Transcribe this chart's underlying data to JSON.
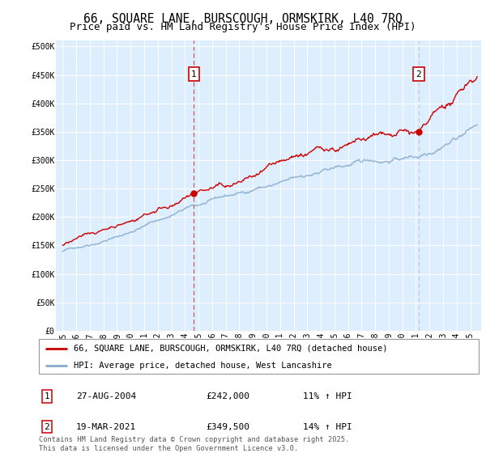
{
  "title": "66, SQUARE LANE, BURSCOUGH, ORMSKIRK, L40 7RQ",
  "subtitle": "Price paid vs. HM Land Registry's House Price Index (HPI)",
  "ylabel_ticks": [
    "£0",
    "£50K",
    "£100K",
    "£150K",
    "£200K",
    "£250K",
    "£300K",
    "£350K",
    "£400K",
    "£450K",
    "£500K"
  ],
  "ytick_values": [
    0,
    50000,
    100000,
    150000,
    200000,
    250000,
    300000,
    350000,
    400000,
    450000,
    500000
  ],
  "ylim": [
    0,
    510000
  ],
  "xlim_start": 1994.5,
  "xlim_end": 2025.8,
  "xtick_years": [
    1995,
    1996,
    1997,
    1998,
    1999,
    2000,
    2001,
    2002,
    2003,
    2004,
    2005,
    2006,
    2007,
    2008,
    2009,
    2010,
    2011,
    2012,
    2013,
    2014,
    2015,
    2016,
    2017,
    2018,
    2019,
    2020,
    2021,
    2022,
    2023,
    2024,
    2025
  ],
  "background_color": "#ddeeff",
  "fig_bg": "#ffffff",
  "grid_color": "#ffffff",
  "red_color": "#cc0000",
  "blue_color": "#88aacc",
  "marker1_x": 2004.65,
  "marker2_x": 2021.2,
  "marker1_dashed_color": "#cc0000",
  "marker2_dashed_color": "#aabbcc",
  "sale1_y": 242000,
  "sale2_y": 349500,
  "legend_line1": "66, SQUARE LANE, BURSCOUGH, ORMSKIRK, L40 7RQ (detached house)",
  "legend_line2": "HPI: Average price, detached house, West Lancashire",
  "ann1_num": "1",
  "ann1_date": "27-AUG-2004",
  "ann1_price": "£242,000",
  "ann1_hpi": "11% ↑ HPI",
  "ann2_num": "2",
  "ann2_date": "19-MAR-2021",
  "ann2_price": "£349,500",
  "ann2_hpi": "14% ↑ HPI",
  "footer": "Contains HM Land Registry data © Crown copyright and database right 2025.\nThis data is licensed under the Open Government Licence v3.0.",
  "title_fontsize": 10.5,
  "subtitle_fontsize": 9,
  "tick_fontsize": 7,
  "legend_fontsize": 7.5,
  "ann_fontsize": 8
}
